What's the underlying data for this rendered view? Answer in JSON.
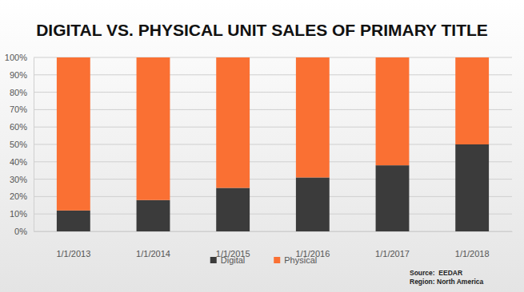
{
  "chart_data": {
    "type": "bar",
    "title": "DIGITAL VS. PHYSICAL UNIT SALES OF PRIMARY TITLE",
    "categories": [
      "1/1/2013",
      "1/1/2014",
      "1/1/2015",
      "1/1/2016",
      "1/1/2017",
      "1/1/2018"
    ],
    "series": [
      {
        "name": "Digital",
        "color": "#3b3b3b",
        "values": [
          12,
          18,
          25,
          31,
          38,
          50
        ]
      },
      {
        "name": "Physical",
        "color": "#fa7033",
        "values": [
          88,
          82,
          75,
          69,
          62,
          50
        ]
      }
    ],
    "stacked": true,
    "ylim": [
      0,
      100
    ],
    "yticks": [
      {
        "value": 0,
        "label": "0%"
      },
      {
        "value": 10,
        "label": "10%"
      },
      {
        "value": 20,
        "label": "20%"
      },
      {
        "value": 30,
        "label": "30%"
      },
      {
        "value": 40,
        "label": "40%"
      },
      {
        "value": 50,
        "label": "50%"
      },
      {
        "value": 60,
        "label": "60%"
      },
      {
        "value": 70,
        "label": "70%"
      },
      {
        "value": 80,
        "label": "80%"
      },
      {
        "value": 90,
        "label": "90%"
      },
      {
        "value": 100,
        "label": "100%"
      }
    ],
    "grid": true,
    "legend": "bottom",
    "annotations": [
      "Source:  EEDAR",
      "Region: North America"
    ]
  }
}
